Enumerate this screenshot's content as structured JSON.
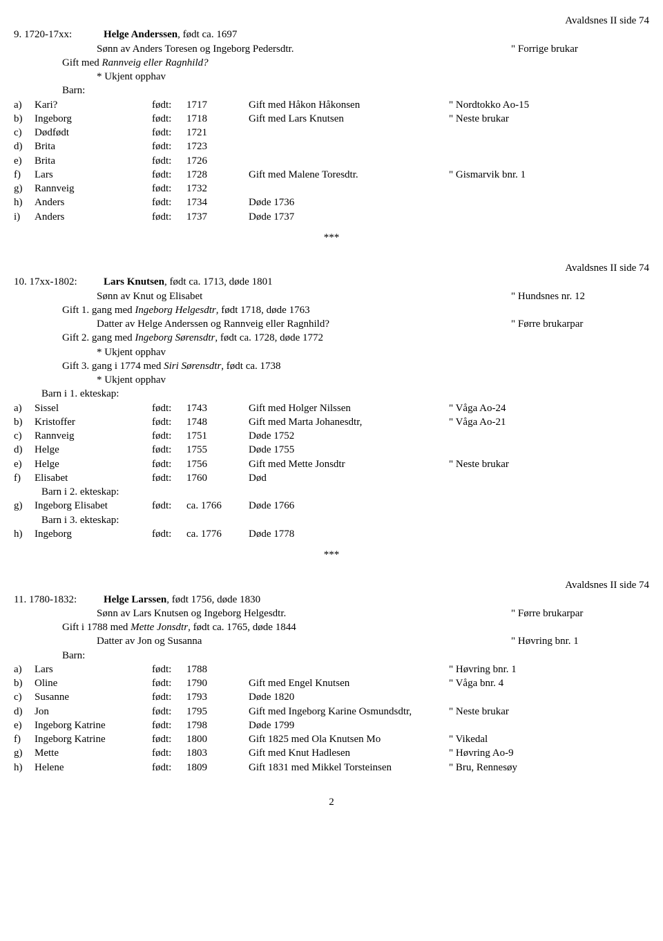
{
  "labels": {
    "fodt": "født:",
    "barn": "Barn:",
    "separator": "***",
    "page_number": "2",
    "ukjent_opphav": "* Ukjent opphav"
  },
  "entries": [
    {
      "page_ref": "Avaldsnes II side 74",
      "period": "9. 1720-17xx:",
      "name_bold": "Helge Anderssen",
      "name_rest": ", født ca. 1697",
      "parent_line": "Sønn av Anders Toresen og Ingeborg Pedersdtr.",
      "parent_ref": "\" Forrige brukar",
      "marriage_lines": [
        {
          "prefix": "Gift med ",
          "italic": "Rannveig eller Ragnhild?"
        }
      ],
      "marriage_origin": [
        "* Ukjent opphav"
      ],
      "children_header": "Barn:",
      "children": [
        {
          "l": "a)",
          "name": "Kari?",
          "year": "1717",
          "note": "Gift med Håkon Håkonsen",
          "ref": "\" Nordtokko Ao-15"
        },
        {
          "l": "b)",
          "name": "Ingeborg",
          "year": "1718",
          "note": "Gift med Lars Knutsen",
          "ref": "\" Neste brukar"
        },
        {
          "l": "c)",
          "name": "Dødfødt",
          "year": "1721",
          "note": "",
          "ref": ""
        },
        {
          "l": "d)",
          "name": "Brita",
          "year": "1723",
          "note": "",
          "ref": ""
        },
        {
          "l": "e)",
          "name": "Brita",
          "year": "1726",
          "note": "",
          "ref": ""
        },
        {
          "l": "f)",
          "name": "Lars",
          "year": "1728",
          "note": "Gift med Malene Toresdtr.",
          "ref": "\" Gismarvik bnr. 1"
        },
        {
          "l": "g)",
          "name": "Rannveig",
          "year": "1732",
          "note": "",
          "ref": ""
        },
        {
          "l": "h)",
          "name": "Anders",
          "year": "1734",
          "note": "Døde 1736",
          "ref": ""
        },
        {
          "l": "i)",
          "name": "Anders",
          "year": "1737",
          "note": "Døde 1737",
          "ref": ""
        }
      ]
    },
    {
      "page_ref": "Avaldsnes II side 74",
      "period": "10. 17xx-1802:",
      "name_bold": "Lars Knutsen",
      "name_rest": ", født ca. 1713, døde 1801",
      "parent_line": "Sønn av Knut og Elisabet",
      "parent_ref": "\" Hundsnes nr. 12",
      "marriage_blocks": [
        {
          "line": {
            "prefix": "Gift 1. gang med ",
            "italic": "Ingeborg Helgesdtr",
            "suffix": ", født 1718, døde 1763"
          },
          "sub": {
            "text": "Datter av Helge Anderssen og Rannveig eller Ragnhild?",
            "ref": "\" Førre brukarpar"
          }
        },
        {
          "line": {
            "prefix": "Gift 2. gang med ",
            "italic": "Ingeborg Sørensdtr",
            "suffix": ", født ca. 1728, døde 1772"
          },
          "sub": {
            "text": "* Ukjent opphav",
            "ref": ""
          }
        },
        {
          "line": {
            "prefix": "Gift 3. gang i 1774 med ",
            "italic": "Siri Sørensdtr",
            "suffix": ", født ca. 1738"
          },
          "sub": {
            "text": "* Ukjent opphav",
            "ref": ""
          }
        }
      ],
      "children_sections": [
        {
          "header": "Barn i 1. ekteskap:",
          "children": [
            {
              "l": "a)",
              "name": "Sissel",
              "year": "1743",
              "note": "Gift med Holger Nilssen",
              "ref": "\" Våga Ao-24"
            },
            {
              "l": "b)",
              "name": "Kristoffer",
              "year": "1748",
              "note": "Gift med Marta Johanesdtr,",
              "ref": "\" Våga Ao-21"
            },
            {
              "l": "c)",
              "name": "Rannveig",
              "year": "1751",
              "note": "Døde 1752",
              "ref": ""
            },
            {
              "l": "d)",
              "name": "Helge",
              "year": "1755",
              "note": "Døde 1755",
              "ref": ""
            },
            {
              "l": "e)",
              "name": "Helge",
              "year": "1756",
              "note": "Gift med Mette Jonsdtr",
              "ref": "\" Neste brukar"
            },
            {
              "l": "f)",
              "name": "Elisabet",
              "year": "1760",
              "note": "Død",
              "ref": ""
            }
          ]
        },
        {
          "header": "Barn i 2. ekteskap:",
          "children": [
            {
              "l": "g)",
              "name": "Ingeborg Elisabet",
              "year": "ca. 1766",
              "note": "Døde 1766",
              "ref": ""
            }
          ]
        },
        {
          "header": "Barn i 3. ekteskap:",
          "children": [
            {
              "l": "h)",
              "name": "Ingeborg",
              "year": "ca. 1776",
              "note": "Døde 1778",
              "ref": ""
            }
          ]
        }
      ]
    },
    {
      "page_ref": "Avaldsnes II side 74",
      "period": "11. 1780-1832:",
      "name_bold": "Helge Larssen",
      "name_rest": ", født 1756, døde 1830",
      "parent_line": "Sønn av Lars Knutsen og Ingeborg Helgesdtr.",
      "parent_ref": "\" Førre brukarpar",
      "marriage_blocks": [
        {
          "line": {
            "prefix": "Gift i 1788 med ",
            "italic": "Mette Jonsdtr",
            "suffix": ", født ca. 1765, døde 1844"
          },
          "sub": {
            "text": "Datter av Jon og Susanna",
            "ref": "\" Høvring bnr. 1"
          }
        }
      ],
      "children_header": "Barn:",
      "children": [
        {
          "l": "a)",
          "name": "Lars",
          "year": "1788",
          "note": "",
          "ref": "\" Høvring bnr. 1"
        },
        {
          "l": "b)",
          "name": "Oline",
          "year": "1790",
          "note": "Gift med Engel Knutsen",
          "ref": "\" Våga bnr. 4"
        },
        {
          "l": "c)",
          "name": "Susanne",
          "year": "1793",
          "note": "Døde 1820",
          "ref": ""
        },
        {
          "l": "d)",
          "name": "Jon",
          "year": "1795",
          "note": "Gift med Ingeborg Karine Osmundsdtr,",
          "ref": "\" Neste brukar"
        },
        {
          "l": "e)",
          "name": "Ingeborg Katrine",
          "year": "1798",
          "note": "Døde 1799",
          "ref": ""
        },
        {
          "l": "f)",
          "name": "Ingeborg Katrine",
          "year": "1800",
          "note": "Gift 1825 med Ola Knutsen Mo",
          "ref": "\" Vikedal"
        },
        {
          "l": "g)",
          "name": "Mette",
          "year": "1803",
          "note": "Gift med Knut Hadlesen",
          "ref": "\" Høvring Ao-9"
        },
        {
          "l": "h)",
          "name": "Helene",
          "year": "1809",
          "note": "Gift 1831 med Mikkel Torsteinsen",
          "ref": "\" Bru, Rennesøy"
        }
      ]
    }
  ]
}
